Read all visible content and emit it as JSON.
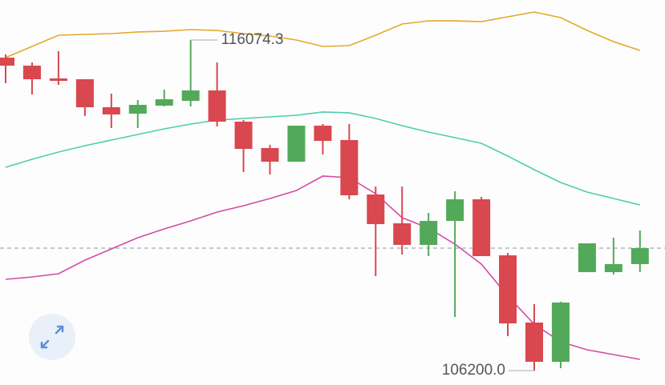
{
  "chart_data": {
    "type": "candlestick",
    "ylim": [
      105769,
      117270
    ],
    "colors": {
      "up": "#52a95a",
      "down": "#d9474f"
    },
    "open": [
      115548,
      115309,
      114927,
      114903,
      114066,
      113875,
      114114,
      114257,
      114568,
      113636,
      112847,
      112440,
      113516,
      113086,
      111460,
      110599,
      109954,
      110671,
      111316,
      109643,
      107634,
      106463,
      109141,
      109141,
      109380
    ],
    "high": [
      115644,
      115405,
      115740,
      114903,
      114472,
      114281,
      114592,
      116074.3,
      115405,
      113683,
      112942,
      113516,
      113564,
      113564,
      111699,
      111699,
      110910,
      111556,
      111388,
      109714,
      108184,
      108256,
      110001,
      110169,
      110384
    ],
    "low": [
      114783,
      114449,
      114735,
      113803,
      113444,
      113444,
      114090,
      114090,
      113492,
      112129,
      112058,
      112440,
      112655,
      111316,
      109021,
      109667,
      109619,
      107802,
      109619,
      107228,
      106200.0,
      106271,
      109165,
      109069,
      109141
    ],
    "close": [
      115309,
      114903,
      114855,
      114066,
      113851,
      114138,
      114305,
      114568,
      113636,
      112823,
      112440,
      113516,
      113062,
      111436,
      110575,
      109954,
      110671,
      111316,
      109619,
      107610,
      106463,
      108232,
      110001,
      109380,
      109858
    ],
    "bands": [
      {
        "color": "#e6a82a",
        "values": [
          115548,
          115883,
          116218,
          116242,
          116266,
          116314,
          116337,
          116385,
          116361,
          116266,
          116194,
          116075,
          115883,
          115907,
          116218,
          116553,
          116648,
          116648,
          116624,
          116768,
          116911,
          116744,
          116361,
          116027,
          115764
        ]
      },
      {
        "color": "#4ecdb0",
        "values": [
          112273,
          112512,
          112727,
          112918,
          113086,
          113253,
          113420,
          113564,
          113683,
          113731,
          113779,
          113827,
          113923,
          113899,
          113731,
          113516,
          113325,
          113157,
          112990,
          112608,
          112201,
          111818,
          111532,
          111340,
          111149
        ]
      },
      {
        "color": "#d44ba4",
        "values": [
          108925,
          108997,
          109093,
          109499,
          109834,
          110169,
          110432,
          110671,
          110934,
          111125,
          111340,
          111579,
          112010,
          111962,
          111484,
          110767,
          110456,
          109977,
          109380,
          108423,
          107586,
          107060,
          106821,
          106678,
          106534
        ]
      }
    ],
    "annotations": [
      {
        "value": 116074.3,
        "label": "116074.3",
        "index": 7,
        "side": "right"
      },
      {
        "value": 106200.0,
        "label": "106200.0",
        "index": 20,
        "side": "left"
      }
    ]
  }
}
